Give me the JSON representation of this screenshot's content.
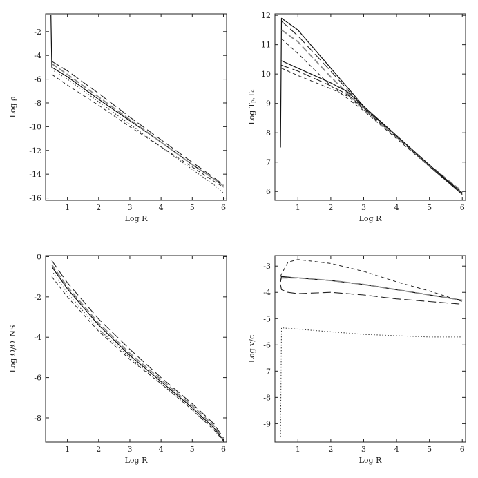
{
  "chart_data": [
    {
      "type": "line",
      "xlabel": "Log R",
      "ylabel": "Log ρ",
      "xlim": [
        0.3,
        6.1
      ],
      "ylim": [
        -16.2,
        -0.5
      ],
      "xticks": [
        1,
        2,
        3,
        4,
        5,
        6
      ],
      "yticks": [
        -2,
        -4,
        -6,
        -8,
        -10,
        -12,
        -14,
        -16
      ],
      "series": [
        {
          "style": "solid",
          "x": [
            0.47,
            0.5,
            1,
            2,
            3,
            4,
            5,
            5.7,
            6
          ],
          "y": [
            -0.6,
            -5.0,
            -5.8,
            -7.7,
            -9.5,
            -11.3,
            -13.2,
            -14.4,
            -15.0
          ]
        },
        {
          "style": "long-dash",
          "x": [
            0.5,
            1,
            2,
            3,
            4,
            5,
            5.7,
            6
          ],
          "y": [
            -4.5,
            -5.3,
            -7.2,
            -9.2,
            -11.1,
            -13.0,
            -14.3,
            -14.9
          ]
        },
        {
          "style": "gray-dash",
          "x": [
            0.5,
            1,
            2,
            3,
            4,
            5,
            5.7,
            6
          ],
          "y": [
            -4.7,
            -5.6,
            -7.5,
            -9.4,
            -11.3,
            -13.2,
            -14.4,
            -15.0
          ]
        },
        {
          "style": "short-dash",
          "x": [
            0.5,
            1,
            2,
            3,
            4,
            5,
            5.7,
            6
          ],
          "y": [
            -5.6,
            -6.5,
            -8.2,
            -10.0,
            -11.7,
            -13.4,
            -14.6,
            -15.1
          ]
        },
        {
          "style": "dotted",
          "x": [
            0.5,
            1,
            2,
            3,
            4,
            5,
            5.7,
            6
          ],
          "y": [
            -5.2,
            -6.0,
            -7.9,
            -9.8,
            -11.7,
            -13.6,
            -14.9,
            -15.6
          ]
        }
      ]
    },
    {
      "type": "line",
      "xlabel": "Log R",
      "ylabel": "Log Tₚ,Tₑ",
      "xlim": [
        0.3,
        6.1
      ],
      "ylim": [
        5.7,
        12.05
      ],
      "xticks": [
        1,
        2,
        3,
        4,
        5,
        6
      ],
      "yticks": [
        6,
        7,
        8,
        9,
        10,
        11,
        12
      ],
      "series": [
        {
          "style": "solid",
          "x": [
            0.47,
            0.5,
            1,
            2,
            3,
            4,
            5,
            6
          ],
          "y": [
            7.5,
            11.9,
            11.5,
            10.2,
            8.9,
            7.9,
            6.9,
            5.9
          ]
        },
        {
          "style": "long-dash",
          "x": [
            0.5,
            1,
            2,
            3,
            4,
            5,
            6
          ],
          "y": [
            11.8,
            11.3,
            10.1,
            8.85,
            7.9,
            6.9,
            5.95
          ]
        },
        {
          "style": "gray-dash",
          "x": [
            0.5,
            1,
            2,
            3,
            4,
            5,
            6
          ],
          "y": [
            11.5,
            11.1,
            9.9,
            8.8,
            7.85,
            6.9,
            6.0
          ]
        },
        {
          "style": "short-dash",
          "x": [
            0.5,
            1,
            2,
            3,
            4,
            5,
            6
          ],
          "y": [
            11.2,
            10.7,
            9.6,
            8.75,
            7.8,
            6.85,
            5.9
          ]
        },
        {
          "style": "solid",
          "x": [
            0.5,
            1,
            2,
            2.5,
            3,
            4,
            5,
            6
          ],
          "y": [
            10.45,
            10.2,
            9.7,
            9.4,
            8.9,
            7.9,
            6.9,
            5.95
          ]
        },
        {
          "style": "long-dash",
          "x": [
            0.5,
            1,
            2,
            2.5,
            3,
            4,
            5,
            6
          ],
          "y": [
            10.3,
            10.1,
            9.6,
            9.3,
            8.85,
            7.9,
            6.9,
            5.95
          ]
        },
        {
          "style": "short-dash",
          "x": [
            0.5,
            1,
            2,
            2.5,
            3,
            4,
            5,
            6
          ],
          "y": [
            10.2,
            9.95,
            9.5,
            9.25,
            8.8,
            7.85,
            6.85,
            5.9
          ]
        }
      ]
    },
    {
      "type": "line",
      "xlabel": "Log R",
      "ylabel": "Log Ω/Ω_NS",
      "xlim": [
        0.3,
        6.1
      ],
      "ylim": [
        -9.2,
        0.05
      ],
      "xticks": [
        1,
        2,
        3,
        4,
        5,
        6
      ],
      "yticks": [
        0,
        -2,
        -4,
        -6,
        -8
      ],
      "series": [
        {
          "style": "solid",
          "x": [
            0.5,
            1,
            2,
            3,
            4,
            5,
            5.7,
            6
          ],
          "y": [
            -0.5,
            -1.6,
            -3.4,
            -4.9,
            -6.2,
            -7.5,
            -8.5,
            -9.1
          ]
        },
        {
          "style": "long-dash",
          "x": [
            0.5,
            1,
            2,
            3,
            4,
            5,
            5.7,
            6
          ],
          "y": [
            -0.2,
            -1.3,
            -3.1,
            -4.6,
            -6.0,
            -7.3,
            -8.3,
            -9.0
          ]
        },
        {
          "style": "gray-dash",
          "x": [
            0.5,
            1,
            2,
            3,
            4,
            5,
            5.7,
            6
          ],
          "y": [
            -0.4,
            -1.5,
            -3.3,
            -4.8,
            -6.1,
            -7.4,
            -8.4,
            -9.05
          ]
        },
        {
          "style": "short-dash",
          "x": [
            0.5,
            1,
            2,
            3,
            4,
            5,
            5.7,
            6
          ],
          "y": [
            -1.0,
            -2.0,
            -3.7,
            -5.1,
            -6.3,
            -7.6,
            -8.6,
            -9.15
          ]
        },
        {
          "style": "dotted",
          "x": [
            0.5,
            1,
            2,
            3,
            4,
            5,
            5.7,
            6
          ],
          "y": [
            -0.7,
            -1.8,
            -3.6,
            -5.0,
            -6.3,
            -7.6,
            -8.6,
            -9.15
          ]
        }
      ]
    },
    {
      "type": "line",
      "xlabel": "Log R",
      "ylabel": "Log v/c",
      "xlim": [
        0.3,
        6.1
      ],
      "ylim": [
        -9.7,
        -2.6
      ],
      "xticks": [
        1,
        2,
        3,
        4,
        5,
        6
      ],
      "yticks": [
        -3,
        -4,
        -5,
        -6,
        -7,
        -8,
        -9
      ],
      "series": [
        {
          "style": "short-dash",
          "x": [
            0.47,
            0.5,
            0.7,
            1,
            2,
            3,
            4,
            5,
            6
          ],
          "y": [
            -3.4,
            -3.3,
            -2.85,
            -2.75,
            -2.9,
            -3.2,
            -3.6,
            -3.95,
            -4.35
          ]
        },
        {
          "style": "solid",
          "x": [
            0.47,
            0.5,
            1,
            2,
            3,
            4,
            5,
            6
          ],
          "y": [
            -3.6,
            -3.4,
            -3.45,
            -3.55,
            -3.7,
            -3.9,
            -4.1,
            -4.3
          ]
        },
        {
          "style": "long-dash",
          "x": [
            0.47,
            0.5,
            0.7,
            1,
            2,
            3,
            4,
            5,
            6
          ],
          "y": [
            -3.7,
            -3.9,
            -4.0,
            -4.05,
            -4.0,
            -4.1,
            -4.25,
            -4.35,
            -4.45
          ]
        },
        {
          "style": "gray-dash",
          "x": [
            0.5,
            1,
            2,
            3,
            4,
            5,
            6
          ],
          "y": [
            -3.45,
            -3.45,
            -3.55,
            -3.7,
            -3.9,
            -4.1,
            -4.3
          ]
        },
        {
          "style": "dotted",
          "x": [
            0.47,
            0.5,
            1,
            2,
            3,
            4,
            5,
            6
          ],
          "y": [
            -9.5,
            -5.35,
            -5.4,
            -5.5,
            -5.6,
            -5.65,
            -5.7,
            -5.7
          ]
        }
      ]
    }
  ]
}
